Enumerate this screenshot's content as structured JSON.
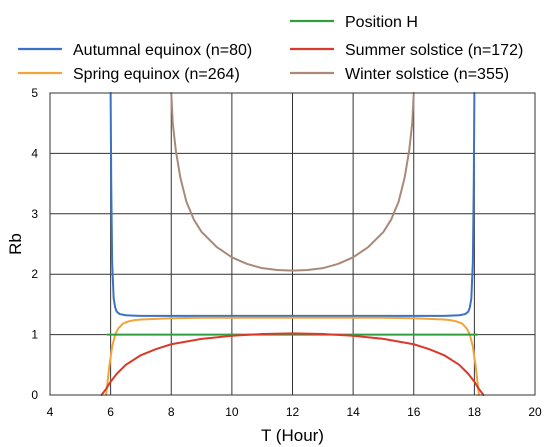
{
  "chart_data": {
    "type": "line",
    "xlabel": "T (Hour)",
    "ylabel": "Rb",
    "xlim": [
      4,
      20
    ],
    "ylim": [
      0,
      5
    ],
    "xticks": [
      "4",
      "6",
      "8",
      "10",
      "12",
      "14",
      "16",
      "18",
      "20"
    ],
    "yticks": [
      "0",
      "1",
      "2",
      "3",
      "4",
      "5"
    ],
    "grid": true,
    "legend_placement": "top",
    "series": [
      {
        "name": "Autumnal equinox (n=80)",
        "color": "#3A72C4",
        "x": [
          6.0,
          6.02,
          6.05,
          6.1,
          6.15,
          6.2,
          6.3,
          6.5,
          7,
          8,
          9,
          10,
          11,
          12,
          13,
          14,
          15,
          16,
          17,
          17.5,
          17.7,
          17.8,
          17.85,
          17.9,
          17.95,
          17.98,
          18.0
        ],
        "values": [
          5.0,
          3.5,
          2.2,
          1.6,
          1.45,
          1.38,
          1.34,
          1.32,
          1.31,
          1.31,
          1.31,
          1.31,
          1.31,
          1.31,
          1.31,
          1.31,
          1.31,
          1.31,
          1.31,
          1.32,
          1.34,
          1.38,
          1.45,
          1.6,
          2.2,
          3.5,
          5.0
        ]
      },
      {
        "name": "Spring equinox (n=264)",
        "color": "#F2A33A",
        "x": [
          5.85,
          5.95,
          6.05,
          6.15,
          6.25,
          6.4,
          6.6,
          6.8,
          7,
          7.5,
          8,
          9,
          10,
          11,
          12,
          13,
          14,
          15,
          16,
          16.5,
          17,
          17.2,
          17.4,
          17.6,
          17.75,
          17.85,
          17.95,
          18.05,
          18.15
        ],
        "values": [
          0.0,
          0.45,
          0.8,
          1.0,
          1.1,
          1.18,
          1.22,
          1.24,
          1.25,
          1.26,
          1.27,
          1.28,
          1.28,
          1.28,
          1.28,
          1.28,
          1.28,
          1.28,
          1.27,
          1.26,
          1.25,
          1.24,
          1.22,
          1.18,
          1.1,
          1.0,
          0.8,
          0.45,
          0.0
        ]
      },
      {
        "name": "Position H",
        "color": "#2E9E3E",
        "x": [
          5.9,
          18.1
        ],
        "values": [
          1.0,
          1.0
        ]
      },
      {
        "name": "Summer solstice (n=172)",
        "color": "#D93A2B",
        "x": [
          5.7,
          5.85,
          6.0,
          6.2,
          6.5,
          7,
          7.5,
          8,
          9,
          10,
          11,
          12,
          13,
          14,
          15,
          16,
          16.5,
          17,
          17.5,
          17.8,
          18.0,
          18.15,
          18.3
        ],
        "values": [
          0.0,
          0.1,
          0.22,
          0.35,
          0.5,
          0.66,
          0.76,
          0.84,
          0.93,
          0.98,
          1.01,
          1.02,
          1.01,
          0.98,
          0.93,
          0.84,
          0.76,
          0.66,
          0.5,
          0.35,
          0.22,
          0.1,
          0.0
        ]
      },
      {
        "name": "Winter solstice (n=355)",
        "color": "#A98A78",
        "x": [
          8.0,
          8.05,
          8.15,
          8.3,
          8.5,
          8.75,
          9,
          9.5,
          10,
          10.5,
          11,
          11.5,
          12,
          12.5,
          13,
          13.5,
          14,
          14.5,
          15,
          15.25,
          15.5,
          15.7,
          15.85,
          15.95,
          16.0
        ],
        "values": [
          5.0,
          4.5,
          4.05,
          3.6,
          3.2,
          2.9,
          2.7,
          2.45,
          2.28,
          2.17,
          2.1,
          2.07,
          2.06,
          2.07,
          2.1,
          2.17,
          2.28,
          2.45,
          2.7,
          2.9,
          3.2,
          3.6,
          4.05,
          4.5,
          5.0
        ]
      }
    ]
  }
}
